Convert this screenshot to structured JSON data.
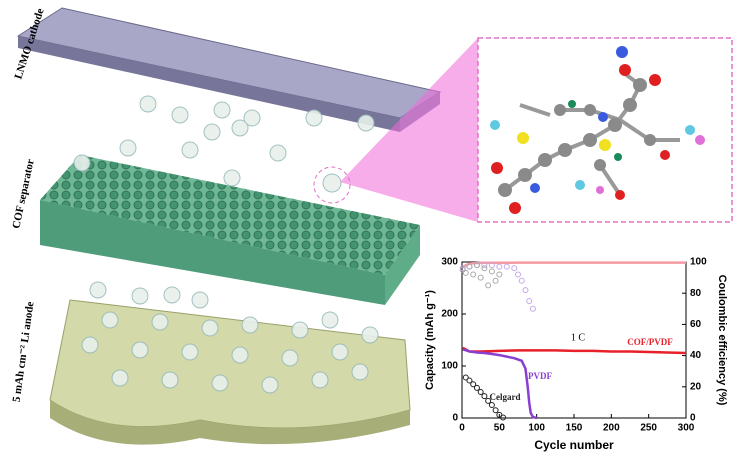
{
  "illustration": {
    "labels": [
      "LNMO cathode",
      "COF separator",
      "5 mAh cm⁻² Li anode"
    ]
  },
  "chart_data": {
    "type": "line",
    "xlabel": "Cycle number",
    "ylabel": "Capacity (mAh g⁻¹)",
    "y2label": "Coulombic efficiency (%)",
    "annotations": [
      "1 C"
    ],
    "xlim": [
      0,
      300
    ],
    "xticks": [
      0,
      50,
      100,
      150,
      200,
      250,
      300
    ],
    "ylim": [
      0,
      300
    ],
    "yticks": [
      0,
      100,
      200,
      300
    ],
    "y2lim": [
      0,
      100
    ],
    "y2ticks": [
      0,
      20,
      40,
      60,
      80,
      100
    ],
    "series": [
      {
        "name": "COF/PVDF",
        "color": "#e8202a",
        "style": "line",
        "x": [
          1,
          10,
          25,
          50,
          75,
          100,
          125,
          150,
          175,
          200,
          225,
          250,
          275,
          300
        ],
        "values": [
          135,
          128,
          128,
          129,
          130,
          130,
          130,
          129,
          129,
          128,
          128,
          127,
          126,
          125
        ]
      },
      {
        "color": "#f59aa0",
        "style": "line",
        "axis": "y2",
        "x": [
          1,
          10,
          25,
          50,
          75,
          100,
          125,
          150,
          175,
          200,
          225,
          250,
          275,
          300
        ],
        "values": [
          97,
          99,
          99.5,
          99.5,
          99.6,
          99.6,
          99.6,
          99.6,
          99.6,
          99.6,
          99.6,
          99.6,
          99.6,
          99.6
        ]
      },
      {
        "name": "PVDF",
        "color": "#8a3fd1",
        "style": "line",
        "x": [
          1,
          10,
          20,
          30,
          40,
          50,
          60,
          70,
          80,
          85,
          88,
          90,
          92,
          95,
          100
        ],
        "values": [
          132,
          128,
          126,
          125,
          123,
          121,
          118,
          115,
          110,
          95,
          60,
          30,
          10,
          2,
          0
        ]
      },
      {
        "color": "#c6a8e8",
        "style": "markers",
        "axis": "y2",
        "x": [
          1,
          10,
          20,
          30,
          40,
          50,
          60,
          70,
          75,
          80,
          85,
          90,
          95
        ],
        "values": [
          96,
          97,
          98,
          98,
          98,
          97,
          97,
          96,
          92,
          88,
          82,
          75,
          70
        ]
      },
      {
        "name": "Celgard",
        "color": "#222222",
        "style": "markers",
        "x": [
          5,
          10,
          15,
          20,
          25,
          30,
          35,
          40,
          45,
          50,
          55
        ],
        "values": [
          78,
          72,
          65,
          58,
          50,
          42,
          33,
          25,
          15,
          6,
          1
        ]
      },
      {
        "color": "#a8a8a8",
        "style": "markers",
        "axis": "y2",
        "x": [
          1,
          5,
          10,
          15,
          20,
          25,
          30,
          35,
          40,
          45,
          50
        ],
        "values": [
          95,
          93,
          97,
          92,
          98,
          90,
          96,
          85,
          94,
          88,
          92
        ]
      }
    ]
  }
}
